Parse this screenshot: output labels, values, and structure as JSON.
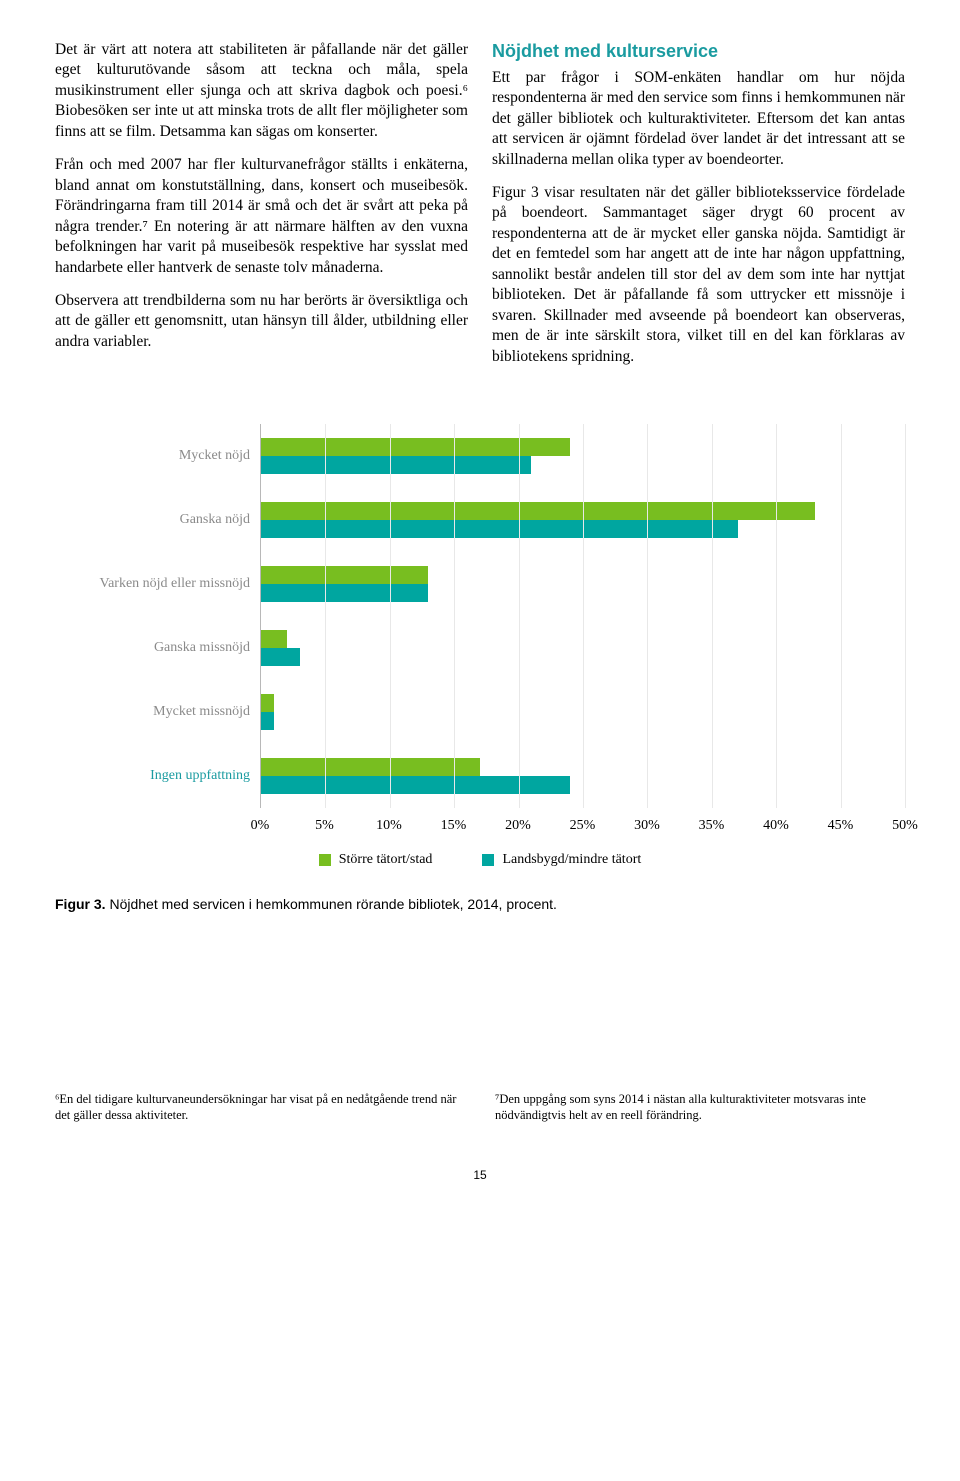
{
  "colors": {
    "text": "#000000",
    "head": "#1a9ba0",
    "series1": "#78be20",
    "series2": "#00a6a0",
    "axis": "#b8b8b8",
    "catLabel": "#8a8a8a",
    "catLabelAccent": "#1a9ba0"
  },
  "left": {
    "p1": "Det är värt att notera att stabiliteten är påfallande när det gäller eget kulturutövande såsom att teckna och måla, spela musikinstrument eller sjunga och att skriva dagbok och poesi.⁶ Biobesöken ser inte ut att minska trots de allt fler möjligheter som finns att se film. Detsamma kan sägas om konserter.",
    "p2": "Från och med 2007 har fler kulturvanefrågor ställts i enkäterna, bland annat om konstutställning, dans, konsert och museibesök. Förändringarna fram till 2014 är små och det är svårt att peka på några trender.⁷ En notering är att närmare hälften av den vuxna befolkningen har varit på museibesök respektive har sysslat med handarbete eller hantverk de senaste tolv månaderna.",
    "p3": "Observera att trendbilderna som nu har berörts är översiktliga och att de gäller ett genomsnitt, utan hänsyn till ålder, utbildning eller andra variabler."
  },
  "right": {
    "heading": "Nöjdhet med kulturservice",
    "p1": "Ett par frågor i SOM-enkäten handlar om hur nöjda respondenterna är med den service som finns i hemkommunen när det gäller bibliotek och kulturaktiviteter. Eftersom det kan antas att servicen är ojämnt fördelad över landet är det intressant att se skillnaderna mellan olika typer av boendeorter.",
    "p2": "Figur 3 visar resultaten när det gäller biblioteks­service fördelade på boendeort. Sammantaget säger drygt 60 procent av respondenterna att de är mycket eller ganska nöjda. Samtidigt är det en femtedel som har angett att de inte har någon uppfattning, sannolikt består andelen till stor del av dem som inte har nyttjat biblioteken. Det är påfallande få som uttrycker ett missnöje i svaren. Skillnader med avseende på boendeort kan observeras, men de är inte särskilt stora, vilket till en del kan förklaras av bibliotekens spridning."
  },
  "chart": {
    "categories": [
      "Mycket nöjd",
      "Ganska nöjd",
      "Varken nöjd eller missnöjd",
      "Ganska missnöjd",
      "Mycket missnöjd",
      "Ingen uppfattning"
    ],
    "cat_colors": [
      "#8a8a8a",
      "#8a8a8a",
      "#8a8a8a",
      "#8a8a8a",
      "#8a8a8a",
      "#1a9ba0"
    ],
    "series1_label": "Större tätort/stad",
    "series2_label": "Landsbygd/mindre tätort",
    "series1_values": [
      24,
      43,
      13,
      2,
      1,
      17
    ],
    "series2_values": [
      21,
      37,
      13,
      3,
      1,
      24
    ],
    "xmax": 50,
    "xtick_step": 5,
    "xtick_labels": [
      "0%",
      "5%",
      "10%",
      "15%",
      "20%",
      "25%",
      "30%",
      "35%",
      "40%",
      "45%",
      "50%"
    ],
    "series1_color": "#78be20",
    "series2_color": "#00a6a0"
  },
  "caption_bold": "Figur 3.",
  "caption_rest": " Nöjdhet med servicen i hemkommunen rörande bibliotek, 2014, procent.",
  "footnote1": "⁶En del tidigare kulturvaneundersökningar har visat på en nedåtgående trend när det gäller dessa aktiviteter.",
  "footnote2": "⁷Den uppgång som syns 2014 i nästan alla kulturaktiviteter motsvaras inte nödvändigtvis helt av en reell förändring.",
  "page_number": "15"
}
